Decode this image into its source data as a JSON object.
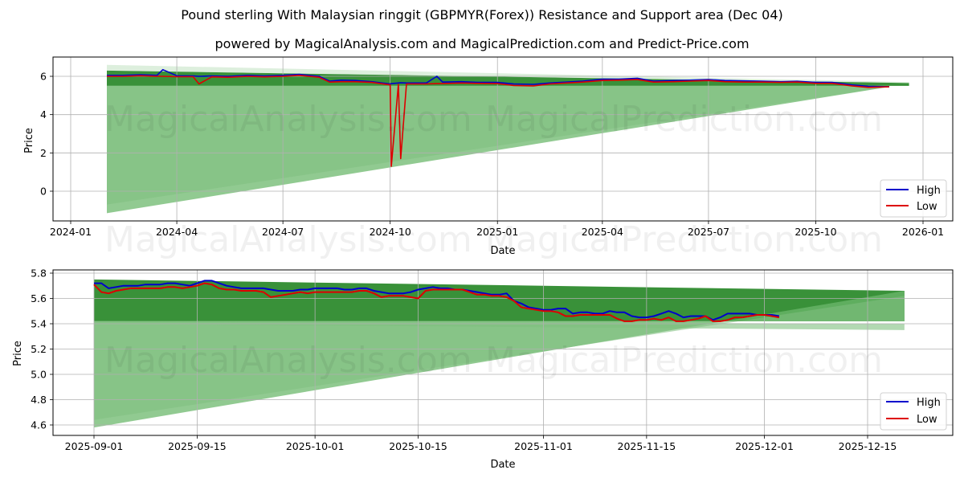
{
  "header": {
    "title": "Pound sterling With Malaysian ringgit (GBPMYR(Forex)) Resistance and Support area (Dec 04)",
    "subtitle": "powered by MagicalAnalysis.com and MagicalPrediction.com and Predict-Price.com"
  },
  "watermarks": [
    "MagicalAnalysis.com",
    "MagicalPrediction.com"
  ],
  "colors": {
    "high": "#0000cc",
    "low": "#dd0000",
    "band_dark": "#2e8b2e",
    "band_light": "#7fbf7f",
    "grid": "#b0b0b0"
  },
  "chart_data": [
    {
      "type": "line",
      "title": "",
      "xlabel": "Date",
      "ylabel": "Price",
      "ylim": [
        -1.55,
        7.0
      ],
      "grid": true,
      "legend_position": "lower right",
      "legend": [
        "High",
        "Low"
      ],
      "x_ticks": [
        "2024-01",
        "2024-04",
        "2024-07",
        "2024-10",
        "2025-01",
        "2025-04",
        "2025-07",
        "2025-10",
        "2026-01"
      ],
      "y_ticks": [
        "0",
        "2",
        "4",
        "6"
      ],
      "x": [
        "2024-02-01",
        "2024-02-15",
        "2024-03-01",
        "2024-03-15",
        "2024-03-20",
        "2024-04-01",
        "2024-04-15",
        "2024-04-20",
        "2024-05-01",
        "2024-05-15",
        "2024-06-01",
        "2024-06-15",
        "2024-07-01",
        "2024-07-15",
        "2024-08-01",
        "2024-08-10",
        "2024-08-20",
        "2024-09-01",
        "2024-09-15",
        "2024-10-01",
        "2024-10-02",
        "2024-10-08",
        "2024-10-10",
        "2024-10-15",
        "2024-11-01",
        "2024-11-10",
        "2024-11-15",
        "2024-12-01",
        "2024-12-15",
        "2025-01-01",
        "2025-01-15",
        "2025-02-01",
        "2025-02-15",
        "2025-03-01",
        "2025-03-15",
        "2025-04-01",
        "2025-04-15",
        "2025-05-01",
        "2025-05-15",
        "2025-06-01",
        "2025-06-15",
        "2025-07-01",
        "2025-07-15",
        "2025-08-01",
        "2025-08-15",
        "2025-09-01",
        "2025-09-15",
        "2025-10-01",
        "2025-10-15",
        "2025-11-01",
        "2025-11-15",
        "2025-12-03"
      ],
      "series": [
        {
          "name": "High",
          "values": [
            6.05,
            6.05,
            6.08,
            6.05,
            6.35,
            6.03,
            6.02,
            6.0,
            6.02,
            6.0,
            6.05,
            6.02,
            6.05,
            6.1,
            6.0,
            5.75,
            5.8,
            5.78,
            5.72,
            5.6,
            5.62,
            5.65,
            5.66,
            5.65,
            5.65,
            6.0,
            5.7,
            5.72,
            5.68,
            5.68,
            5.6,
            5.58,
            5.65,
            5.7,
            5.75,
            5.85,
            5.85,
            5.9,
            5.75,
            5.78,
            5.8,
            5.83,
            5.78,
            5.76,
            5.75,
            5.72,
            5.74,
            5.68,
            5.68,
            5.55,
            5.48,
            5.46
          ]
        },
        {
          "name": "Low",
          "values": [
            6.0,
            6.0,
            6.03,
            6.0,
            6.0,
            5.98,
            5.98,
            5.6,
            5.97,
            5.95,
            6.0,
            5.97,
            6.0,
            6.05,
            5.95,
            5.7,
            5.72,
            5.72,
            5.68,
            5.55,
            1.3,
            5.58,
            1.7,
            5.6,
            5.6,
            5.62,
            5.62,
            5.65,
            5.63,
            5.62,
            5.52,
            5.5,
            5.6,
            5.65,
            5.7,
            5.78,
            5.8,
            5.83,
            5.7,
            5.72,
            5.75,
            5.78,
            5.72,
            5.7,
            5.7,
            5.68,
            5.7,
            5.63,
            5.63,
            5.5,
            5.42,
            5.45
          ]
        }
      ],
      "bands": [
        {
          "kind": "resistance_dark",
          "x_start": "2024-02-01",
          "x_end": "2025-12-20",
          "top": [
            6.3,
            5.65
          ],
          "bottom": [
            5.5,
            5.5
          ]
        },
        {
          "kind": "support_light",
          "x_start": "2024-02-01",
          "x_end": "2025-12-03",
          "top": [
            5.5,
            5.5
          ],
          "bottom": [
            -1.15,
            5.45
          ]
        },
        {
          "kind": "support_light_inner",
          "x_start": "2024-02-01",
          "x_end": "2025-12-03",
          "top": [
            5.5,
            5.5
          ],
          "bottom": [
            -0.7,
            5.45
          ]
        },
        {
          "kind": "upper_faint",
          "x_start": "2024-02-01",
          "x_end": "2025-12-20",
          "top": [
            6.6,
            5.7
          ],
          "bottom": [
            6.3,
            5.65
          ]
        }
      ]
    },
    {
      "type": "line",
      "title": "",
      "xlabel": "Date",
      "ylabel": "Price",
      "ylim": [
        4.51,
        5.82
      ],
      "grid": true,
      "legend_position": "lower right",
      "legend": [
        "High",
        "Low"
      ],
      "x_ticks": [
        "2025-09-01",
        "2025-09-15",
        "2025-10-01",
        "2025-10-15",
        "2025-11-01",
        "2025-11-15",
        "2025-12-01",
        "2025-12-15"
      ],
      "y_ticks": [
        "4.6",
        "4.8",
        "5.0",
        "5.2",
        "5.4",
        "5.6",
        "5.8"
      ],
      "x": [
        "2025-09-01",
        "2025-09-02",
        "2025-09-03",
        "2025-09-04",
        "2025-09-05",
        "2025-09-06",
        "2025-09-07",
        "2025-09-08",
        "2025-09-09",
        "2025-09-10",
        "2025-09-11",
        "2025-09-12",
        "2025-09-13",
        "2025-09-14",
        "2025-09-15",
        "2025-09-16",
        "2025-09-17",
        "2025-09-18",
        "2025-09-19",
        "2025-09-20",
        "2025-09-21",
        "2025-09-22",
        "2025-09-23",
        "2025-09-24",
        "2025-09-25",
        "2025-09-26",
        "2025-09-27",
        "2025-09-28",
        "2025-09-29",
        "2025-09-30",
        "2025-10-01",
        "2025-10-02",
        "2025-10-03",
        "2025-10-04",
        "2025-10-05",
        "2025-10-06",
        "2025-10-07",
        "2025-10-08",
        "2025-10-09",
        "2025-10-10",
        "2025-10-11",
        "2025-10-12",
        "2025-10-13",
        "2025-10-14",
        "2025-10-15",
        "2025-10-16",
        "2025-10-17",
        "2025-10-18",
        "2025-10-19",
        "2025-10-20",
        "2025-10-21",
        "2025-10-22",
        "2025-10-23",
        "2025-10-24",
        "2025-10-25",
        "2025-10-26",
        "2025-10-27",
        "2025-10-28",
        "2025-10-29",
        "2025-10-30",
        "2025-10-31",
        "2025-11-01",
        "2025-11-02",
        "2025-11-03",
        "2025-11-04",
        "2025-11-05",
        "2025-11-06",
        "2025-11-07",
        "2025-11-08",
        "2025-11-09",
        "2025-11-10",
        "2025-11-11",
        "2025-11-12",
        "2025-11-13",
        "2025-11-14",
        "2025-11-15",
        "2025-11-16",
        "2025-11-17",
        "2025-11-18",
        "2025-11-19",
        "2025-11-20",
        "2025-11-21",
        "2025-11-22",
        "2025-11-23",
        "2025-11-24",
        "2025-11-25",
        "2025-11-26",
        "2025-11-27",
        "2025-11-28",
        "2025-11-29",
        "2025-11-30",
        "2025-12-01",
        "2025-12-02",
        "2025-12-03"
      ],
      "series": [
        {
          "name": "High",
          "values": [
            5.72,
            5.72,
            5.68,
            5.69,
            5.7,
            5.7,
            5.7,
            5.71,
            5.71,
            5.71,
            5.72,
            5.72,
            5.71,
            5.7,
            5.72,
            5.74,
            5.74,
            5.72,
            5.7,
            5.69,
            5.68,
            5.68,
            5.68,
            5.68,
            5.67,
            5.66,
            5.66,
            5.66,
            5.67,
            5.67,
            5.68,
            5.68,
            5.68,
            5.68,
            5.67,
            5.67,
            5.68,
            5.68,
            5.66,
            5.65,
            5.64,
            5.64,
            5.64,
            5.65,
            5.67,
            5.68,
            5.69,
            5.68,
            5.68,
            5.67,
            5.67,
            5.66,
            5.65,
            5.64,
            5.63,
            5.63,
            5.64,
            5.58,
            5.56,
            5.53,
            5.52,
            5.51,
            5.51,
            5.52,
            5.52,
            5.48,
            5.49,
            5.49,
            5.48,
            5.48,
            5.5,
            5.49,
            5.49,
            5.46,
            5.45,
            5.45,
            5.46,
            5.48,
            5.5,
            5.48,
            5.45,
            5.46,
            5.46,
            5.46,
            5.43,
            5.45,
            5.48,
            5.48,
            5.48,
            5.48,
            5.47,
            5.47,
            5.47,
            5.46
          ]
        },
        {
          "name": "Low",
          "values": [
            5.71,
            5.65,
            5.64,
            5.66,
            5.67,
            5.68,
            5.68,
            5.68,
            5.68,
            5.68,
            5.69,
            5.69,
            5.68,
            5.69,
            5.7,
            5.72,
            5.71,
            5.68,
            5.67,
            5.67,
            5.66,
            5.66,
            5.66,
            5.65,
            5.61,
            5.62,
            5.63,
            5.64,
            5.65,
            5.64,
            5.65,
            5.65,
            5.65,
            5.65,
            5.65,
            5.65,
            5.66,
            5.66,
            5.64,
            5.61,
            5.62,
            5.62,
            5.62,
            5.61,
            5.6,
            5.66,
            5.67,
            5.67,
            5.67,
            5.67,
            5.67,
            5.65,
            5.63,
            5.63,
            5.62,
            5.62,
            5.61,
            5.58,
            5.53,
            5.52,
            5.51,
            5.5,
            5.5,
            5.49,
            5.46,
            5.46,
            5.47,
            5.47,
            5.47,
            5.47,
            5.47,
            5.44,
            5.42,
            5.42,
            5.43,
            5.43,
            5.44,
            5.43,
            5.45,
            5.42,
            5.42,
            5.43,
            5.44,
            5.46,
            5.42,
            5.42,
            5.43,
            5.45,
            5.45,
            5.46,
            5.47,
            5.47,
            5.46,
            5.45
          ]
        }
      ],
      "bands": [
        {
          "kind": "resistance_dark",
          "x_start": "2025-09-01",
          "x_end": "2025-12-20",
          "top": [
            5.75,
            5.66
          ],
          "bottom": [
            5.42,
            5.42
          ]
        },
        {
          "kind": "support_light",
          "x_start": "2025-09-01",
          "x_end": "2025-12-20",
          "top": [
            5.42,
            5.42
          ],
          "bottom": [
            4.58,
            5.66
          ]
        },
        {
          "kind": "support_light_inner",
          "x_start": "2025-09-01",
          "x_end": "2025-12-20",
          "top": [
            5.42,
            5.42
          ],
          "bottom": [
            4.64,
            5.62
          ]
        },
        {
          "kind": "lower_extension",
          "x_start": "2025-09-01",
          "x_end": "2025-12-20",
          "top": [
            5.42,
            5.4
          ],
          "bottom": [
            5.4,
            5.35
          ]
        }
      ]
    }
  ]
}
